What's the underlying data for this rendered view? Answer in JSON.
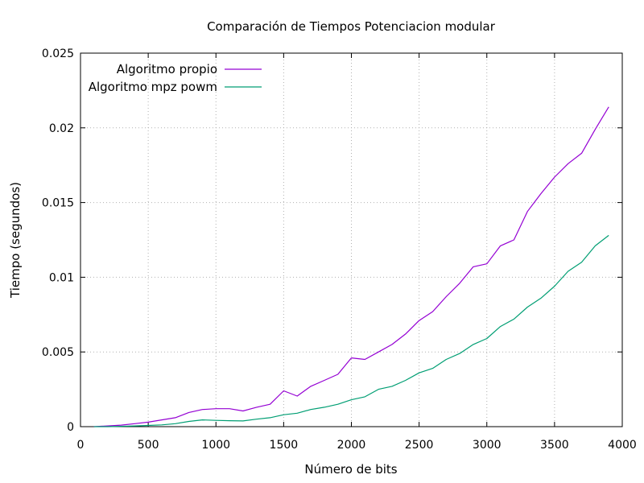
{
  "chart_data": {
    "type": "line",
    "title": "Comparación de Tiempos Potenciacion modular",
    "xlabel": "Número de bits",
    "ylabel": "Tiempo (segundos)",
    "xlim": [
      0,
      4000
    ],
    "ylim": [
      0,
      0.025
    ],
    "xticks": [
      "0",
      "500",
      "1000",
      "1500",
      "2000",
      "2500",
      "3000",
      "3500",
      "4000"
    ],
    "yticks": [
      "0",
      "0.005",
      "0.01",
      "0.015",
      "0.02",
      "0.025"
    ],
    "grid": true,
    "legend_position": "top-left",
    "x": [
      100,
      200,
      300,
      400,
      500,
      600,
      700,
      800,
      900,
      1000,
      1100,
      1200,
      1300,
      1400,
      1500,
      1600,
      1700,
      1800,
      1900,
      2000,
      2100,
      2200,
      2300,
      2400,
      2500,
      2600,
      2700,
      2800,
      2900,
      3000,
      3100,
      3200,
      3300,
      3400,
      3500,
      3600,
      3700,
      3800,
      3900
    ],
    "series": [
      {
        "name": "Algoritmo propio",
        "color": "#9400d3",
        "values": [
          0.0,
          5e-05,
          0.0001,
          0.0002,
          0.0003,
          0.00045,
          0.0006,
          0.00095,
          0.00115,
          0.0012,
          0.0012,
          0.00105,
          0.0013,
          0.0015,
          0.0024,
          0.00205,
          0.0027,
          0.0031,
          0.0035,
          0.0046,
          0.0045,
          0.005,
          0.0055,
          0.0062,
          0.0071,
          0.0077,
          0.0087,
          0.0096,
          0.0107,
          0.0109,
          0.0121,
          0.0125,
          0.0144,
          0.0156,
          0.0167,
          0.0176,
          0.0183,
          0.0199,
          0.0214
        ]
      },
      {
        "name": "Algoritmo mpz powm",
        "color": "#009e73",
        "values": [
          0.0,
          0.0,
          2e-05,
          5e-05,
          8e-05,
          0.00012,
          0.0002,
          0.00035,
          0.00045,
          0.00042,
          0.0004,
          0.00038,
          0.0005,
          0.0006,
          0.0008,
          0.0009,
          0.00115,
          0.0013,
          0.0015,
          0.0018,
          0.002,
          0.0025,
          0.0027,
          0.0031,
          0.0036,
          0.0039,
          0.0045,
          0.0049,
          0.0055,
          0.0059,
          0.0067,
          0.0072,
          0.008,
          0.0086,
          0.0094,
          0.0104,
          0.011,
          0.0121,
          0.0128
        ]
      }
    ]
  }
}
